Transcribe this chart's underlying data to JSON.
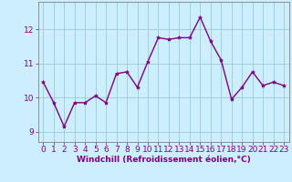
{
  "x": [
    0,
    1,
    2,
    3,
    4,
    5,
    6,
    7,
    8,
    9,
    10,
    11,
    12,
    13,
    14,
    15,
    16,
    17,
    18,
    19,
    20,
    21,
    22,
    23
  ],
  "y": [
    10.45,
    9.85,
    9.15,
    9.85,
    9.85,
    10.05,
    9.85,
    10.7,
    10.75,
    10.3,
    11.05,
    11.75,
    11.7,
    11.75,
    11.75,
    12.35,
    11.65,
    11.1,
    9.95,
    10.3,
    10.75,
    10.35,
    10.45,
    10.35
  ],
  "line_color": "#800080",
  "marker": "*",
  "marker_size": 3,
  "bg_color": "#cceeff",
  "grid_color": "#99cccc",
  "xlabel": "Windchill (Refroidissement éolien,°C)",
  "ylim": [
    8.7,
    12.8
  ],
  "xlim": [
    -0.5,
    23.5
  ],
  "yticks": [
    9,
    10,
    11,
    12
  ],
  "xticks": [
    0,
    1,
    2,
    3,
    4,
    5,
    6,
    7,
    8,
    9,
    10,
    11,
    12,
    13,
    14,
    15,
    16,
    17,
    18,
    19,
    20,
    21,
    22,
    23
  ],
  "xlabel_fontsize": 6.5,
  "tick_fontsize": 6.5,
  "linewidth": 1.0,
  "label_color": "#800080",
  "spine_color": "#808080"
}
